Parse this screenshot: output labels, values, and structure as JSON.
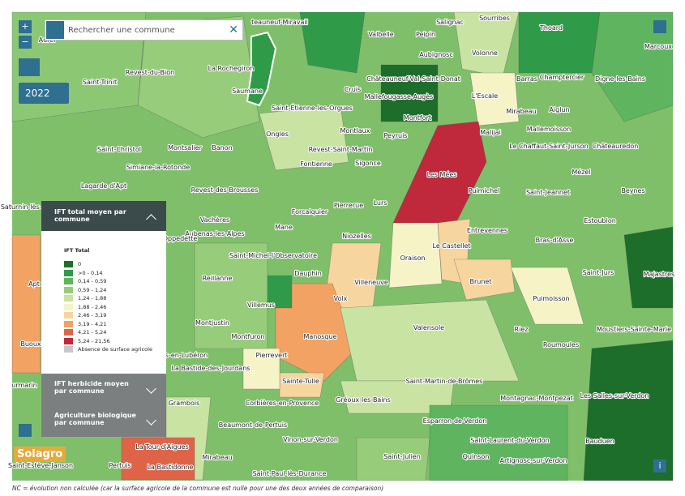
{
  "search": {
    "placeholder": "Rechercher une commune"
  },
  "controls": {
    "zoom_in": "+",
    "zoom_out": "−",
    "info": "i",
    "year": "2022"
  },
  "panels": [
    "IFT total moyen par commune",
    "IFT herbicide moyen par commune",
    "Agriculture biologique par commune"
  ],
  "legend": {
    "title": "IFT Total",
    "items": [
      {
        "label": "0",
        "color": "#1c6e2a"
      },
      {
        "label": ">0 - 0,14",
        "color": "#2f9a48"
      },
      {
        "label": "0,14 - 0,59",
        "color": "#5fb460"
      },
      {
        "label": "0,59 - 1,24",
        "color": "#97cc7a"
      },
      {
        "label": "1,24 - 1,88",
        "color": "#c8e3a2"
      },
      {
        "label": "1,88 - 2,46",
        "color": "#f6f4c6"
      },
      {
        "label": "2,46 - 3,19",
        "color": "#f6d59e"
      },
      {
        "label": "3,19 - 4,21",
        "color": "#f2a262"
      },
      {
        "label": "4,21 - 5,24",
        "color": "#df6447"
      },
      {
        "label": "5,24 - 21,56",
        "color": "#c0283c"
      },
      {
        "label": "Absence de surface agricole",
        "color": "#c8c8c8"
      }
    ]
  },
  "logo": "Solagro",
  "footnote": "NC = évolution non calculée (car la surface agricole de la commune est nulle pour une des deux années de comparaison)",
  "communes": [
    "Sourribes",
    "Salignac",
    "Valbelle",
    "Peipin",
    "Thoard",
    "Aubignosc",
    "Volonne",
    "Marcoux",
    "Aurel",
    "Revest-du-Bion",
    "La Rochegiron",
    "Saumane",
    "Cruis",
    "Châteauneuf-Val-Saint-Donat",
    "Barras",
    "Champtercier",
    "Digne-les-Bains",
    "Saint-Trinit",
    "Mallefougasse-Augès",
    "L'Escale",
    "Saint-Étienne-les-Orgues",
    "Mirabeau",
    "Aiglun",
    "Montfort",
    "Montlaux",
    "Mallemoisson",
    "Ongles",
    "Peyruis",
    "Malijai",
    "Saint-Christol",
    "Montsalier",
    "Banon",
    "Revest-Saint-Martin",
    "Le Chaffaut-Saint-Jurson",
    "Châteauredon",
    "Fontienne",
    "Sigonce",
    "Simiane-la-Rotonde",
    "Mézel",
    "Les Mées",
    "Lagarde-d'Apt",
    "Revest-des-Brousses",
    "Puimichel",
    "Saint-Jeannet",
    "Beynes",
    "Pierrerue",
    "Lurs",
    "Forcalquier",
    "Vachères",
    "Entrevennes",
    "Estoublon",
    "Mane",
    "Aubenas-les-Alpes",
    "Niozelles",
    "Oppedette",
    "Le Castellet",
    "Bras-d'Asse",
    "Saint-Michel-l'Observatoire",
    "Oraison",
    "Dauphin",
    "Reillanne",
    "Villeneuve",
    "Brunet",
    "Saint-Jurs",
    "Majastres",
    "Volx",
    "Villemus",
    "Puimoisson",
    "Montjustin",
    "Valensole",
    "Riez",
    "Moustiers-Sainte-Marie",
    "Montfuron",
    "Manosque",
    "Roumoules",
    "Pierrevert",
    "Saint-Martin-de-Brômes",
    "Sainte-Tulle",
    "Corbières-en-Provence",
    "Gréoux-les-Bains",
    "Montagnac-Montpezat",
    "Les Salles-sur-Verdon",
    "Grambois",
    "Beaumont-de-Pertuis",
    "Esparron-de-Verdon",
    "Vinon-sur-Verdon",
    "Saint-Laurent-du-Verdon",
    "Bauduen",
    "La Tour-d'Aigues",
    "Saint-Julien",
    "Quinson",
    "Artignosc-sur-Verdon",
    "Mirabeau",
    "Pertuis",
    "La Bastidonne",
    "Saint-Paul-lès-Durance",
    "Saint-Estève-Janson",
    "Saturnin-lès-Apt",
    "Apt",
    "Buoux",
    "urmarin",
    "s-en-Lubéron",
    "La Bastide-des-Jourdans",
    "teauneuf-Miravail"
  ]
}
